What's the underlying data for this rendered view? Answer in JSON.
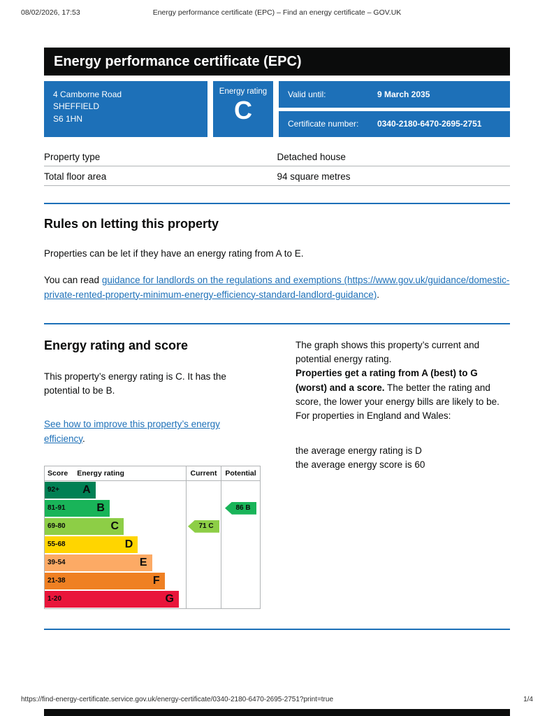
{
  "page": {
    "print_date": "08/02/2026, 17:53",
    "print_title": "Energy performance certificate (EPC) – Find an energy certificate – GOV.UK",
    "footer_url": "https://find-energy-certificate.service.gov.uk/energy-certificate/0340-2180-6470-2695-2751?print=true",
    "page_number": "1/4"
  },
  "banner": {
    "title": "Energy performance certificate (EPC)"
  },
  "summary": {
    "address_lines": [
      "4 Camborne Road",
      "SHEFFIELD",
      "S6 1HN"
    ],
    "energy_rating_label": "Energy rating",
    "energy_rating": "C",
    "valid_until_label": "Valid until:",
    "valid_until": "9 March 2035",
    "certificate_number_label": "Certificate number:",
    "certificate_number": "0340-2180-6470-2695-2751"
  },
  "property": {
    "rows": [
      {
        "label": "Property type",
        "value": "Detached house"
      },
      {
        "label": "Total floor area",
        "value": "94 square metres"
      }
    ]
  },
  "letting": {
    "heading": "Rules on letting this property",
    "paragraph": "Properties can be let if they have an energy rating from A to E.",
    "read_prefix": "You can read ",
    "link_text": "guidance for landlords on the regulations and exemptions (https://www.gov.uk/guidance/domestic-private-rented-property-minimum-energy-efficiency-standard-landlord-guidance)",
    "read_suffix": "."
  },
  "rating_section": {
    "heading": "Energy rating and score",
    "description": "This property’s energy rating is C. It has the potential to be B.",
    "improve_link": "See how to improve this property’s energy efficiency",
    "improve_suffix": ".",
    "right_column": {
      "p1": "The graph shows this property’s current and potential energy rating.",
      "p2_bold": "Properties get a rating from A (best) to G (worst) and a score.",
      "p2_rest": " The better the rating and score, the lower your energy bills are likely to be.",
      "p3": "For properties in England and Wales:",
      "p4": "the average energy rating is D",
      "p5": "the average energy score is 60"
    }
  },
  "chart_data": {
    "type": "epc-bands",
    "headers": [
      "Score",
      "Energy rating",
      "Current",
      "Potential"
    ],
    "bands": [
      {
        "score": "92+",
        "letter": "A",
        "color": "#008054",
        "width_pct": 36
      },
      {
        "score": "81-91",
        "letter": "B",
        "color": "#19b459",
        "width_pct": 46
      },
      {
        "score": "69-80",
        "letter": "C",
        "color": "#8dce46",
        "width_pct": 56
      },
      {
        "score": "55-68",
        "letter": "D",
        "color": "#ffd500",
        "width_pct": 66
      },
      {
        "score": "39-54",
        "letter": "E",
        "color": "#fcaa65",
        "width_pct": 76
      },
      {
        "score": "21-38",
        "letter": "F",
        "color": "#ef8023",
        "width_pct": 85
      },
      {
        "score": "1-20",
        "letter": "G",
        "color": "#e9153b",
        "width_pct": 95
      }
    ],
    "current": {
      "score": 71,
      "letter": "C",
      "color": "#8dce46"
    },
    "potential": {
      "score": 86,
      "letter": "B",
      "color": "#19b459"
    }
  }
}
